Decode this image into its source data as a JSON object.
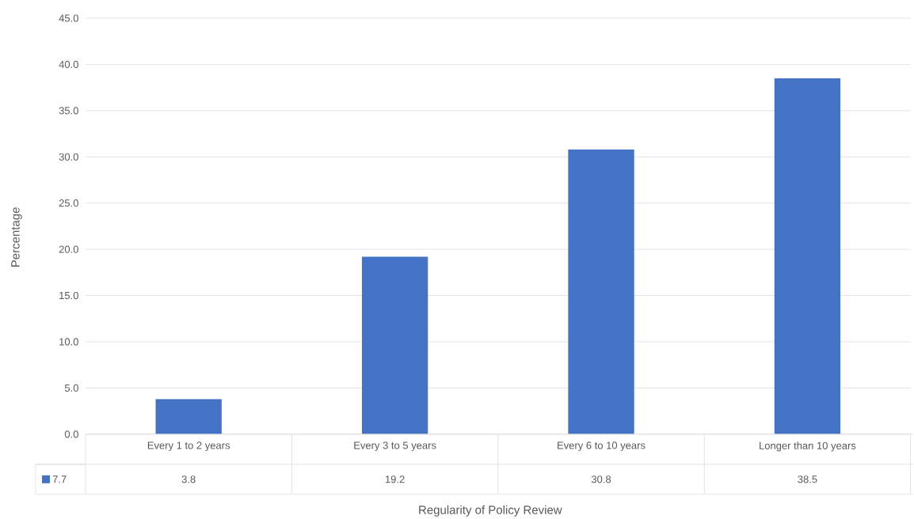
{
  "chart_data": {
    "type": "bar",
    "xlabel": "Regularity of Policy Review",
    "ylabel": "Percentage",
    "categories": [
      "Every 1 to 2 years",
      "Every 3 to 5 years",
      "Every 6 to 10 years",
      "Longer than 10 years"
    ],
    "series": [
      {
        "name": "7.7",
        "color": "#4472c4",
        "values": [
          3.8,
          19.2,
          30.8,
          38.5
        ]
      }
    ],
    "ylim": [
      0,
      45
    ],
    "yticks": [
      {
        "value": 0,
        "label": "0.0"
      },
      {
        "value": 5,
        "label": "5.0"
      },
      {
        "value": 10,
        "label": "10.0"
      },
      {
        "value": 15,
        "label": "15.0"
      },
      {
        "value": 20,
        "label": "20.0"
      },
      {
        "value": 25,
        "label": "25.0"
      },
      {
        "value": 30,
        "label": "30.0"
      },
      {
        "value": 35,
        "label": "35.0"
      },
      {
        "value": 40,
        "label": "40.0"
      },
      {
        "value": 45,
        "label": "45.0"
      }
    ],
    "grid": "y",
    "data_labels": true,
    "legend": "bottom left"
  }
}
